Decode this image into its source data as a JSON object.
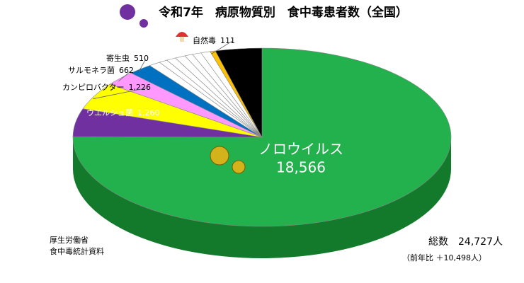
{
  "chart_data": {
    "type": "pie",
    "title": "令和7年　病原物質別　食中毒患者数（全国）",
    "categories": [
      "ノロウイルス",
      "ウエルシュ菌",
      "カンピロバクター",
      "サルモネラ菌",
      "寄生虫",
      null,
      null,
      null,
      null,
      null,
      null,
      null,
      "自然毒",
      null
    ],
    "values": [
      18566,
      1260,
      1226,
      662,
      510,
      250,
      180,
      200,
      220,
      170,
      190,
      200,
      111,
      982
    ],
    "value_labels": [
      "18,566",
      "1,260",
      "1,226",
      "662",
      "510",
      null,
      null,
      null,
      null,
      null,
      null,
      null,
      "111",
      null
    ],
    "colors": [
      "#22b14c",
      "#7030a0",
      "#ffff00",
      "#ff99ff",
      "#0070c0",
      "#ffffff",
      "#ffffff",
      "#ffffff",
      "#ffffff",
      "#ffffff",
      "#ffffff",
      "#ffffff",
      "#ffc000",
      "#000000"
    ],
    "annotations": [
      "総数　24,727人",
      "（前年比 ＋10,498人）"
    ],
    "source": [
      "厚生労働省",
      "食中毒統計資料"
    ]
  }
}
